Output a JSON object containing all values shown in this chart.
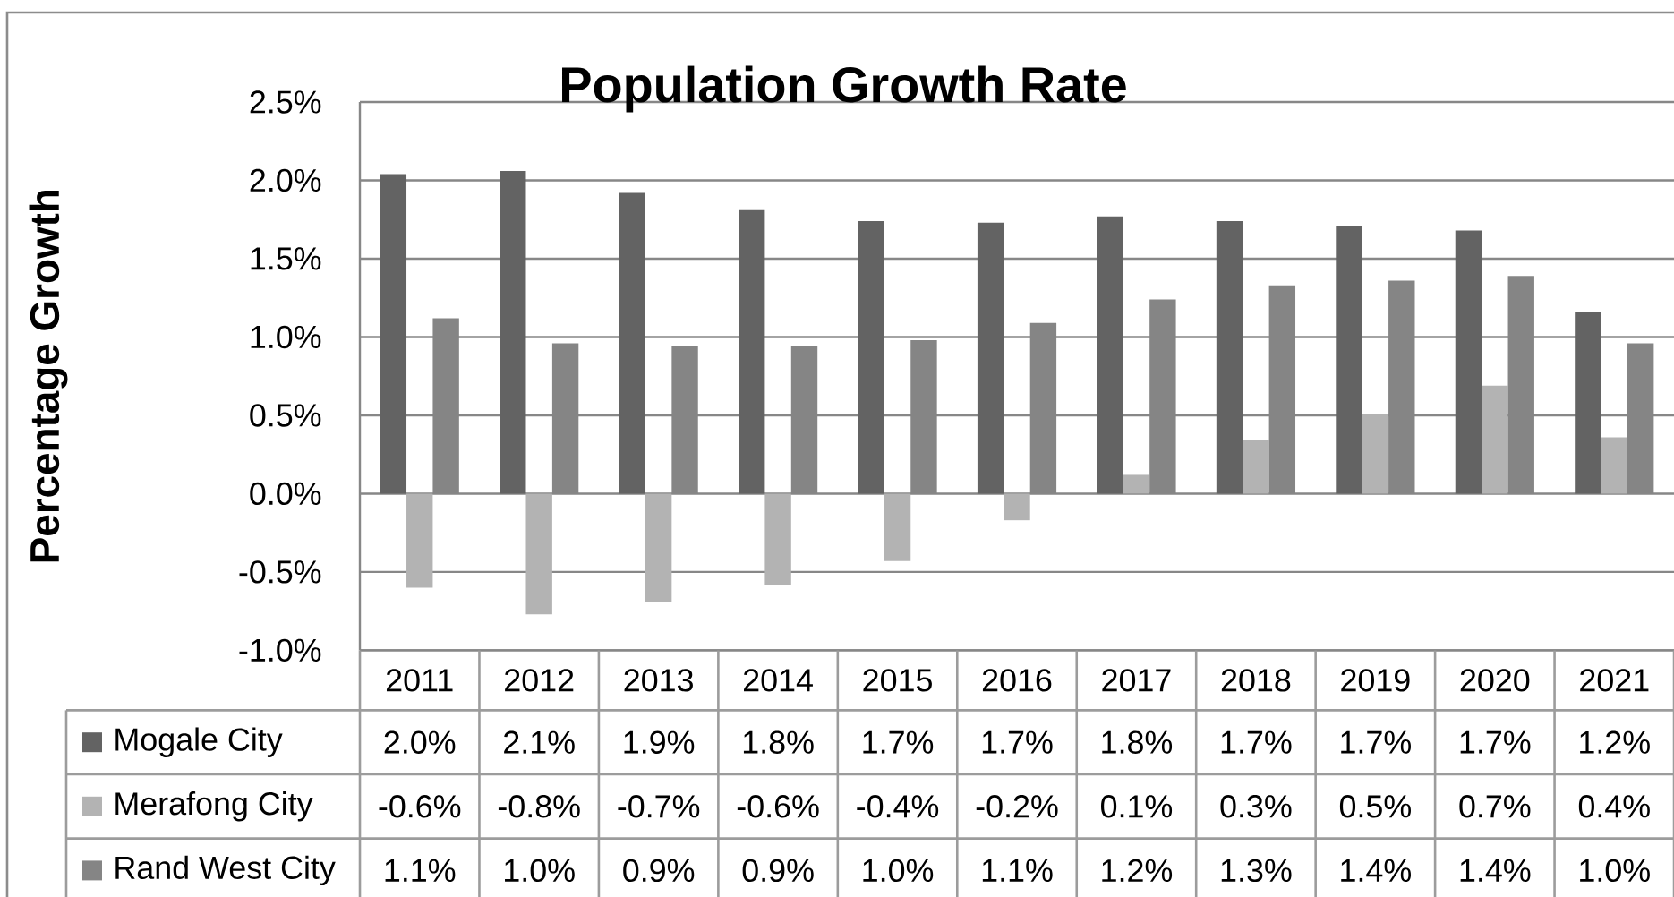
{
  "chart_data": {
    "type": "bar",
    "title": "Population Growth Rate",
    "ylabel": "Percentage Growth",
    "categories": [
      "2011",
      "2012",
      "2013",
      "2014",
      "2015",
      "2016",
      "2017",
      "2018",
      "2019",
      "2020",
      "2021"
    ],
    "series": [
      {
        "name": "Mogale City",
        "color": "#636363",
        "values": [
          2.04,
          2.06,
          1.92,
          1.81,
          1.74,
          1.73,
          1.77,
          1.74,
          1.71,
          1.68,
          1.16
        ],
        "value_labels": [
          "2.0%",
          "2.1%",
          "1.9%",
          "1.8%",
          "1.7%",
          "1.7%",
          "1.8%",
          "1.7%",
          "1.7%",
          "1.7%",
          "1.2%"
        ]
      },
      {
        "name": "Merafong City",
        "color": "#b3b3b3",
        "values": [
          -0.6,
          -0.77,
          -0.69,
          -0.58,
          -0.43,
          -0.17,
          0.12,
          0.34,
          0.51,
          0.69,
          0.36
        ],
        "value_labels": [
          "-0.6%",
          "-0.8%",
          "-0.7%",
          "-0.6%",
          "-0.4%",
          "-0.2%",
          "0.1%",
          "0.3%",
          "0.5%",
          "0.7%",
          "0.4%"
        ]
      },
      {
        "name": "Rand West City",
        "color": "#858585",
        "values": [
          1.12,
          0.96,
          0.94,
          0.94,
          0.98,
          1.09,
          1.24,
          1.33,
          1.36,
          1.39,
          0.96
        ],
        "value_labels": [
          "1.1%",
          "1.0%",
          "0.9%",
          "0.9%",
          "1.0%",
          "1.1%",
          "1.2%",
          "1.3%",
          "1.4%",
          "1.4%",
          "1.0%"
        ]
      }
    ],
    "ylim": [
      -1.0,
      2.5
    ],
    "yticks": [
      {
        "value": -1.0,
        "label": "-1.0%"
      },
      {
        "value": -0.5,
        "label": "-0.5%"
      },
      {
        "value": 0.0,
        "label": "0.0%"
      },
      {
        "value": 0.5,
        "label": "0.5%"
      },
      {
        "value": 1.0,
        "label": "1.0%"
      },
      {
        "value": 1.5,
        "label": "1.5%"
      },
      {
        "value": 2.0,
        "label": "2.0%"
      },
      {
        "value": 2.5,
        "label": "2.5%"
      }
    ],
    "grid": "y",
    "legend": "bottom left"
  }
}
